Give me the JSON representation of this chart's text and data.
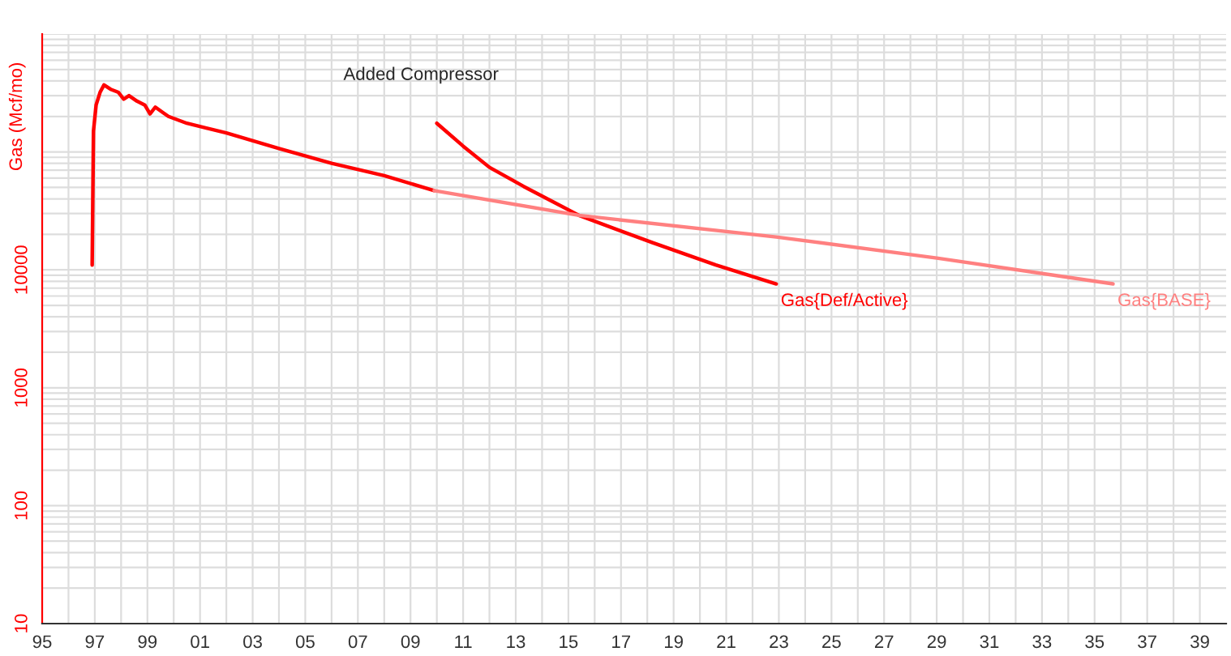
{
  "chart_data": {
    "type": "line",
    "ylabel": "Gas (Mcf/mo)",
    "log": true,
    "grid": true,
    "legend": false,
    "xlim": [
      1995,
      2040
    ],
    "xticks": [
      {
        "value": 1995,
        "label": "95"
      },
      {
        "value": 1996,
        "label": null
      },
      {
        "value": 1997,
        "label": "97"
      },
      {
        "value": 1998,
        "label": null
      },
      {
        "value": 1999,
        "label": "99"
      },
      {
        "value": 2000,
        "label": null
      },
      {
        "value": 2001,
        "label": "01"
      },
      {
        "value": 2002,
        "label": null
      },
      {
        "value": 2003,
        "label": "03"
      },
      {
        "value": 2004,
        "label": null
      },
      {
        "value": 2005,
        "label": "05"
      },
      {
        "value": 2006,
        "label": null
      },
      {
        "value": 2007,
        "label": "07"
      },
      {
        "value": 2008,
        "label": null
      },
      {
        "value": 2009,
        "label": "09"
      },
      {
        "value": 2010,
        "label": null
      },
      {
        "value": 2011,
        "label": "11"
      },
      {
        "value": 2012,
        "label": null
      },
      {
        "value": 2013,
        "label": "13"
      },
      {
        "value": 2014,
        "label": null
      },
      {
        "value": 2015,
        "label": "15"
      },
      {
        "value": 2016,
        "label": null
      },
      {
        "value": 2017,
        "label": "17"
      },
      {
        "value": 2018,
        "label": null
      },
      {
        "value": 2019,
        "label": "19"
      },
      {
        "value": 2020,
        "label": null
      },
      {
        "value": 2021,
        "label": "21"
      },
      {
        "value": 2022,
        "label": null
      },
      {
        "value": 2023,
        "label": "23"
      },
      {
        "value": 2024,
        "label": null
      },
      {
        "value": 2025,
        "label": "25"
      },
      {
        "value": 2026,
        "label": null
      },
      {
        "value": 2027,
        "label": "27"
      },
      {
        "value": 2028,
        "label": null
      },
      {
        "value": 2029,
        "label": "29"
      },
      {
        "value": 2030,
        "label": null
      },
      {
        "value": 2031,
        "label": "31"
      },
      {
        "value": 2032,
        "label": null
      },
      {
        "value": 2033,
        "label": "33"
      },
      {
        "value": 2034,
        "label": null
      },
      {
        "value": 2035,
        "label": "35"
      },
      {
        "value": 2036,
        "label": null
      },
      {
        "value": 2037,
        "label": "37"
      },
      {
        "value": 2038,
        "label": null
      },
      {
        "value": 2039,
        "label": "39"
      }
    ],
    "ylim": [
      10,
      1000000
    ],
    "yticks": [
      10,
      100,
      1000,
      10000,
      {
        "value": 100000,
        "label": null
      },
      {
        "value": 1000000,
        "label": null
      }
    ],
    "annotations": [
      "Added Compressor"
    ],
    "series": [
      {
        "name": "Gas{Def/Active}",
        "color": "#ff0000",
        "x": [
          1996.9,
          1996.95,
          1997.05,
          1997.2,
          1997.35,
          1997.6,
          1997.9,
          1998.1,
          1998.3,
          1998.6,
          1998.9,
          1999.1,
          1999.3,
          1999.6,
          1999.8,
          2000.5,
          2002,
          2004,
          2006,
          2008,
          2009.9,
          2009.95,
          2010,
          2011,
          2012,
          2013.3,
          2015.4,
          2018.2,
          2020.6,
          2022.9
        ],
        "values": [
          11000,
          150000,
          250000,
          320000,
          370000,
          340000,
          320000,
          280000,
          300000,
          270000,
          250000,
          210000,
          240000,
          215000,
          200000,
          175000,
          145000,
          107000,
          80000,
          63000,
          47000,
          null,
          175000,
          112000,
          74000,
          51000,
          29000,
          17000,
          11000,
          7600
        ]
      },
      {
        "name": "Gas{BASE}",
        "color": "#ff8080",
        "x": [
          2009.9,
          2015.4,
          2022.9,
          2029,
          2035.7
        ],
        "values": [
          47000,
          29000,
          19000,
          12600,
          7600
        ]
      }
    ]
  }
}
